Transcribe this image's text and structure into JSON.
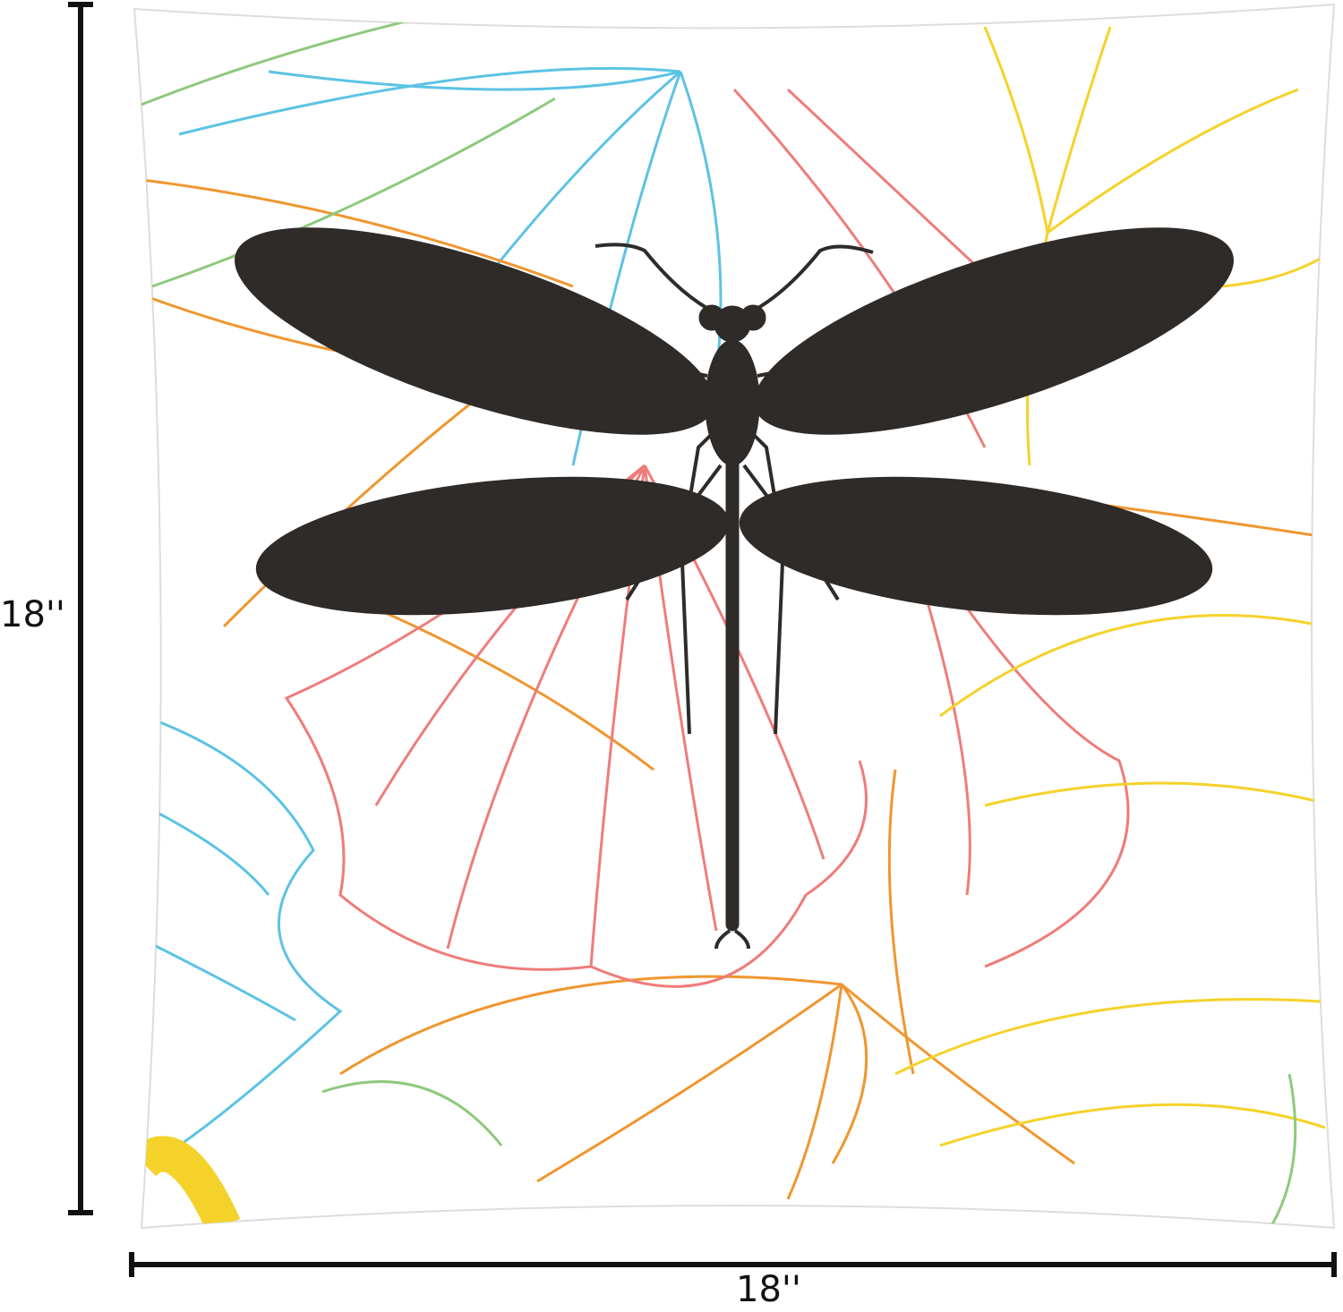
{
  "product": {
    "height_label": "18''",
    "width_label": "18''"
  },
  "colors": {
    "dragonfly": "#2e2b29",
    "leaf_orange": "#f0962f",
    "leaf_blue": "#5cc3e4",
    "leaf_pink": "#ee7d7a",
    "leaf_yellow": "#f5d22a",
    "leaf_green": "#8ec97d",
    "dimension_line": "#111111"
  }
}
